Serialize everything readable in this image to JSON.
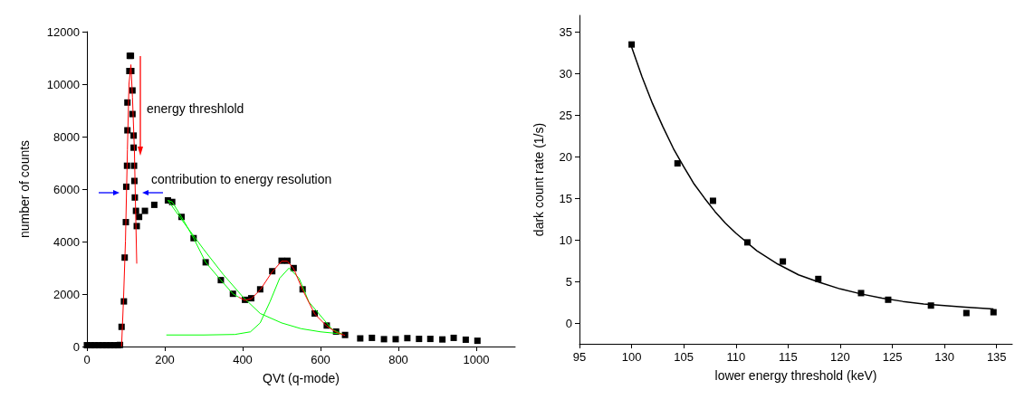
{
  "chart_data": [
    {
      "type": "scatter",
      "xlabel": "QVt (q-mode)",
      "ylabel": "number of counts",
      "xlim": [
        0,
        1100
      ],
      "xticks": [
        0,
        200,
        400,
        600,
        800,
        1000
      ],
      "ylim": [
        0,
        12000
      ],
      "yticks": [
        0,
        2000,
        4000,
        6000,
        8000,
        10000,
        12000
      ],
      "grid": false,
      "annotations": [
        "energy threshlold",
        "contribution to energy resolution"
      ],
      "series": [
        {
          "marker": "square",
          "color": "#000000",
          "x": [
            0,
            10,
            20,
            30,
            40,
            50,
            60,
            70,
            80,
            85,
            89,
            95,
            97,
            100,
            101,
            103,
            104,
            104,
            109,
            110,
            113,
            114,
            117,
            117,
            120,
            120,
            121,
            122,
            123,
            126,
            128,
            134,
            149,
            173,
            208,
            219,
            243,
            274,
            305,
            344,
            375,
            406,
            422,
            445,
            476,
            500,
            515,
            531,
            554,
            585,
            616,
            640,
            663,
            702,
            732,
            763,
            793,
            823,
            853,
            882,
            913,
            942,
            973,
            1003
          ],
          "values": [
            50,
            50,
            50,
            50,
            50,
            50,
            50,
            50,
            50,
            60,
            750,
            1720,
            3390,
            4740,
            6090,
            6890,
            8240,
            9300,
            10500,
            11080,
            11080,
            10500,
            9760,
            8860,
            8040,
            7580,
            6890,
            6310,
            5680,
            5170,
            4590,
            4940,
            5170,
            5400,
            5570,
            5510,
            4940,
            4130,
            3210,
            2530,
            2010,
            1780,
            1840,
            2180,
            2870,
            3270,
            3270,
            2990,
            2180,
            1260,
            800,
            570,
            440,
            310,
            330,
            280,
            280,
            320,
            290,
            290,
            270,
            330,
            260,
            220
          ]
        },
        {
          "type": "line",
          "marker": "none",
          "color": "#ff0000",
          "x": [
            89,
            94,
            99,
            104,
            108,
            113,
            117,
            122,
            125,
            128
          ],
          "values": [
            0,
            1800,
            4020,
            7500,
            10000,
            10740,
            9500,
            7460,
            5200,
            3160
          ]
        },
        {
          "type": "line",
          "marker": "none",
          "color": "#ff0000",
          "x": [
            390,
            406,
            422,
            445,
            476,
            500,
            515,
            531,
            554,
            585,
            616,
            640,
            663
          ],
          "values": [
            1880,
            1760,
            1820,
            2160,
            2850,
            3250,
            3250,
            2970,
            2160,
            1240,
            780,
            550,
            420
          ]
        },
        {
          "type": "line",
          "marker": "none",
          "color": "#00ff00",
          "x": [
            208,
            219,
            243,
            274,
            305,
            344,
            375,
            390
          ],
          "values": [
            5570,
            5510,
            4940,
            4130,
            3210,
            2530,
            2010,
            1880
          ]
        },
        {
          "type": "line",
          "marker": "none",
          "color": "#00ff00",
          "x": [
            204,
            300,
            380,
            420,
            445,
            470,
            495,
            519,
            545,
            570,
            630,
            655
          ],
          "values": [
            440,
            440,
            460,
            560,
            900,
            1700,
            2600,
            2990,
            2600,
            1700,
            650,
            480
          ]
        },
        {
          "type": "line",
          "marker": "none",
          "color": "#00ff00",
          "x": [
            208,
            250,
            300,
            350,
            400,
            445,
            500,
            550,
            600,
            655
          ],
          "values": [
            5570,
            4700,
            3700,
            2750,
            1900,
            1260,
            900,
            680,
            560,
            480
          ]
        }
      ]
    },
    {
      "type": "scatter",
      "xlabel": "lower energy threshold (keV)",
      "ylabel": "dark count rate (1/s)",
      "xlim": [
        95,
        136.5
      ],
      "xticks": [
        95,
        100,
        105,
        110,
        115,
        120,
        125,
        130,
        135
      ],
      "ylim": [
        -2.5,
        37
      ],
      "yticks": [
        0,
        5,
        10,
        15,
        20,
        25,
        30,
        35
      ],
      "grid": false,
      "series": [
        {
          "marker": "square",
          "color": "#000000",
          "x": [
            100.0,
            104.4,
            107.8,
            111.1,
            114.5,
            117.9,
            122.0,
            124.6,
            128.7,
            132.1,
            134.7
          ],
          "values": [
            33.5,
            19.2,
            14.7,
            9.7,
            7.4,
            5.3,
            3.6,
            2.8,
            2.1,
            1.2,
            1.3
          ]
        },
        {
          "type": "line",
          "marker": "none",
          "color": "#000000",
          "x": [
            100,
            101,
            102,
            103,
            104,
            105,
            106,
            107,
            108,
            109,
            110,
            112,
            114,
            116,
            118,
            120,
            122,
            124,
            126,
            128,
            130,
            132,
            134.7
          ],
          "values": [
            33.2,
            29.6,
            26.4,
            23.6,
            21.0,
            18.8,
            16.7,
            15.0,
            13.4,
            12.0,
            10.8,
            8.7,
            7.1,
            5.8,
            4.9,
            4.1,
            3.5,
            3.0,
            2.6,
            2.3,
            2.1,
            1.9,
            1.7
          ]
        }
      ]
    }
  ]
}
